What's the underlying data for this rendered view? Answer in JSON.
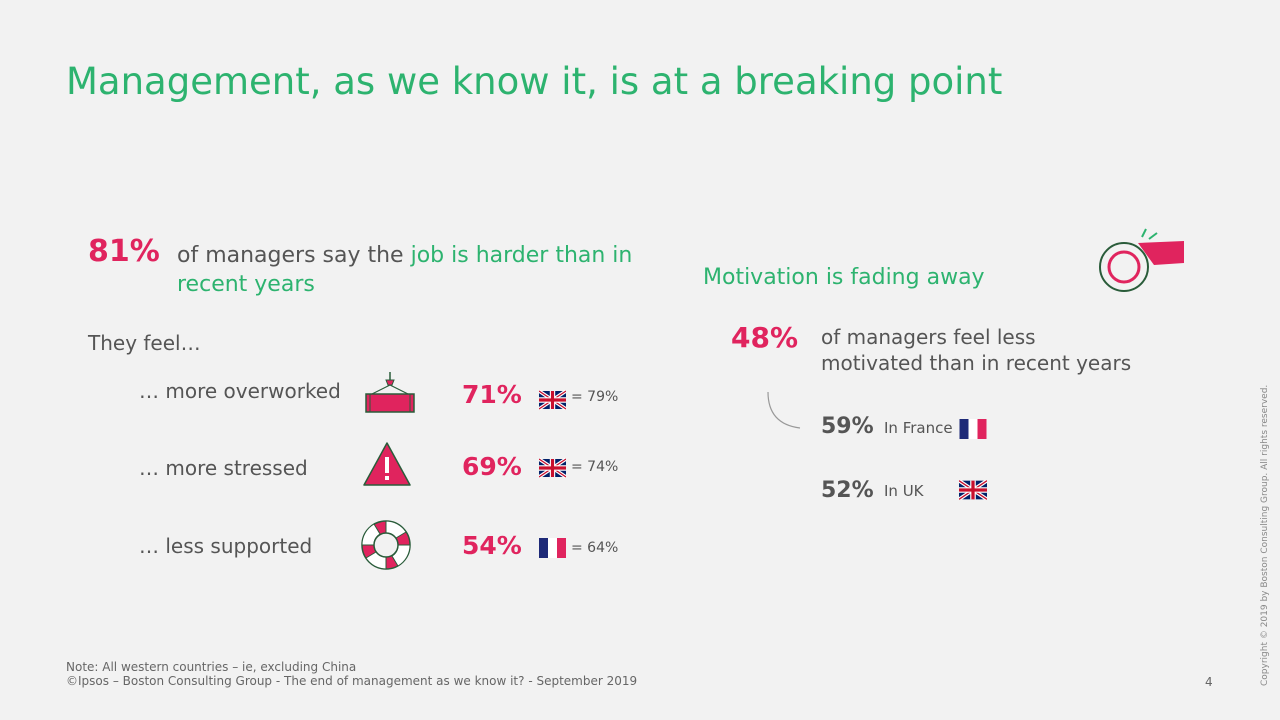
{
  "title": "Management, as we know it, is at a breaking point",
  "left": {
    "headline_pct": "81%",
    "headline_text": "of managers say the ",
    "headline_highlight": "job is harder than in recent years",
    "they_feel": "They feel…",
    "rows": [
      {
        "label": "… more overworked",
        "pct": "71%",
        "flag": "uk",
        "compare": "= 79%",
        "icon": "crane-load-icon"
      },
      {
        "label": "… more stressed",
        "pct": "69%",
        "flag": "uk",
        "compare": "= 74%",
        "icon": "warning-triangle-icon"
      },
      {
        "label": "… less supported",
        "pct": "54%",
        "flag": "france",
        "compare": "= 64%",
        "icon": "lifebuoy-icon"
      }
    ]
  },
  "right": {
    "heading": "Motivation is fading away",
    "pct": "48%",
    "text": "of managers feel less motivated than in recent years",
    "breakdown": [
      {
        "pct": "59%",
        "label": "In France",
        "flag": "france"
      },
      {
        "pct": "52%",
        "label": "In UK",
        "flag": "uk"
      }
    ],
    "icon": "whistle-icon"
  },
  "footer": {
    "note": "Note: All western countries – ie, excluding China",
    "source": "©Ipsos – Boston Consulting Group - The end of management as we know it? - September 2019",
    "page": "4",
    "copyright": "Copyright © 2019 by Boston Consulting Group. All rights reserved."
  },
  "colors": {
    "accent_green": "#2db36f",
    "accent_pink": "#e0245e",
    "text": "#555555",
    "background": "#f2f2f2"
  }
}
